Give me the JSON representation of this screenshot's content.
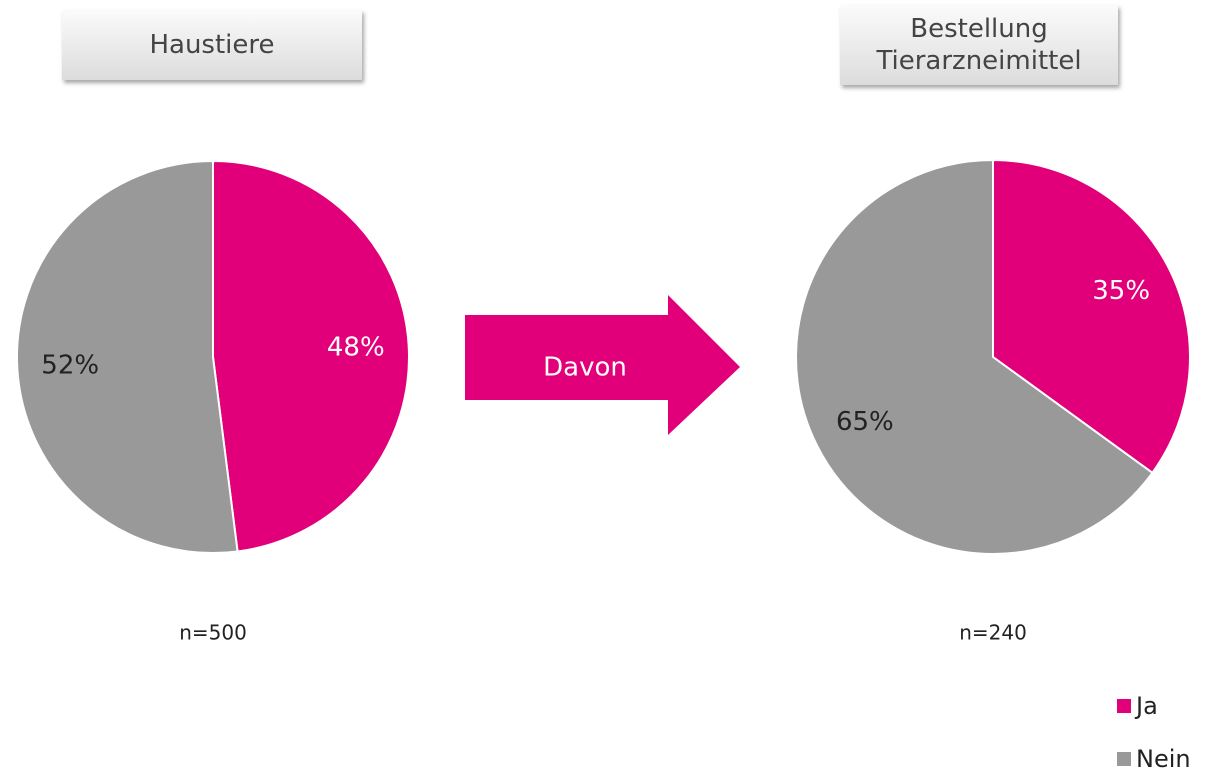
{
  "chart_data": [
    {
      "type": "pie",
      "title": "Haustiere",
      "values": [
        48,
        52
      ],
      "value_labels": [
        "48%",
        "52%"
      ],
      "sample_size": "n=500"
    },
    {
      "type": "pie",
      "title": "Bestellung Tierarzneimittel",
      "values": [
        35,
        65
      ],
      "value_labels": [
        "35%",
        "65%"
      ],
      "sample_size": "n=240"
    }
  ],
  "arrow_label": "Davon",
  "legend": {
    "categories": [
      "Ja",
      "Nein"
    ],
    "colors": [
      "#e2007a",
      "#999999"
    ],
    "position": "bottom-right"
  }
}
